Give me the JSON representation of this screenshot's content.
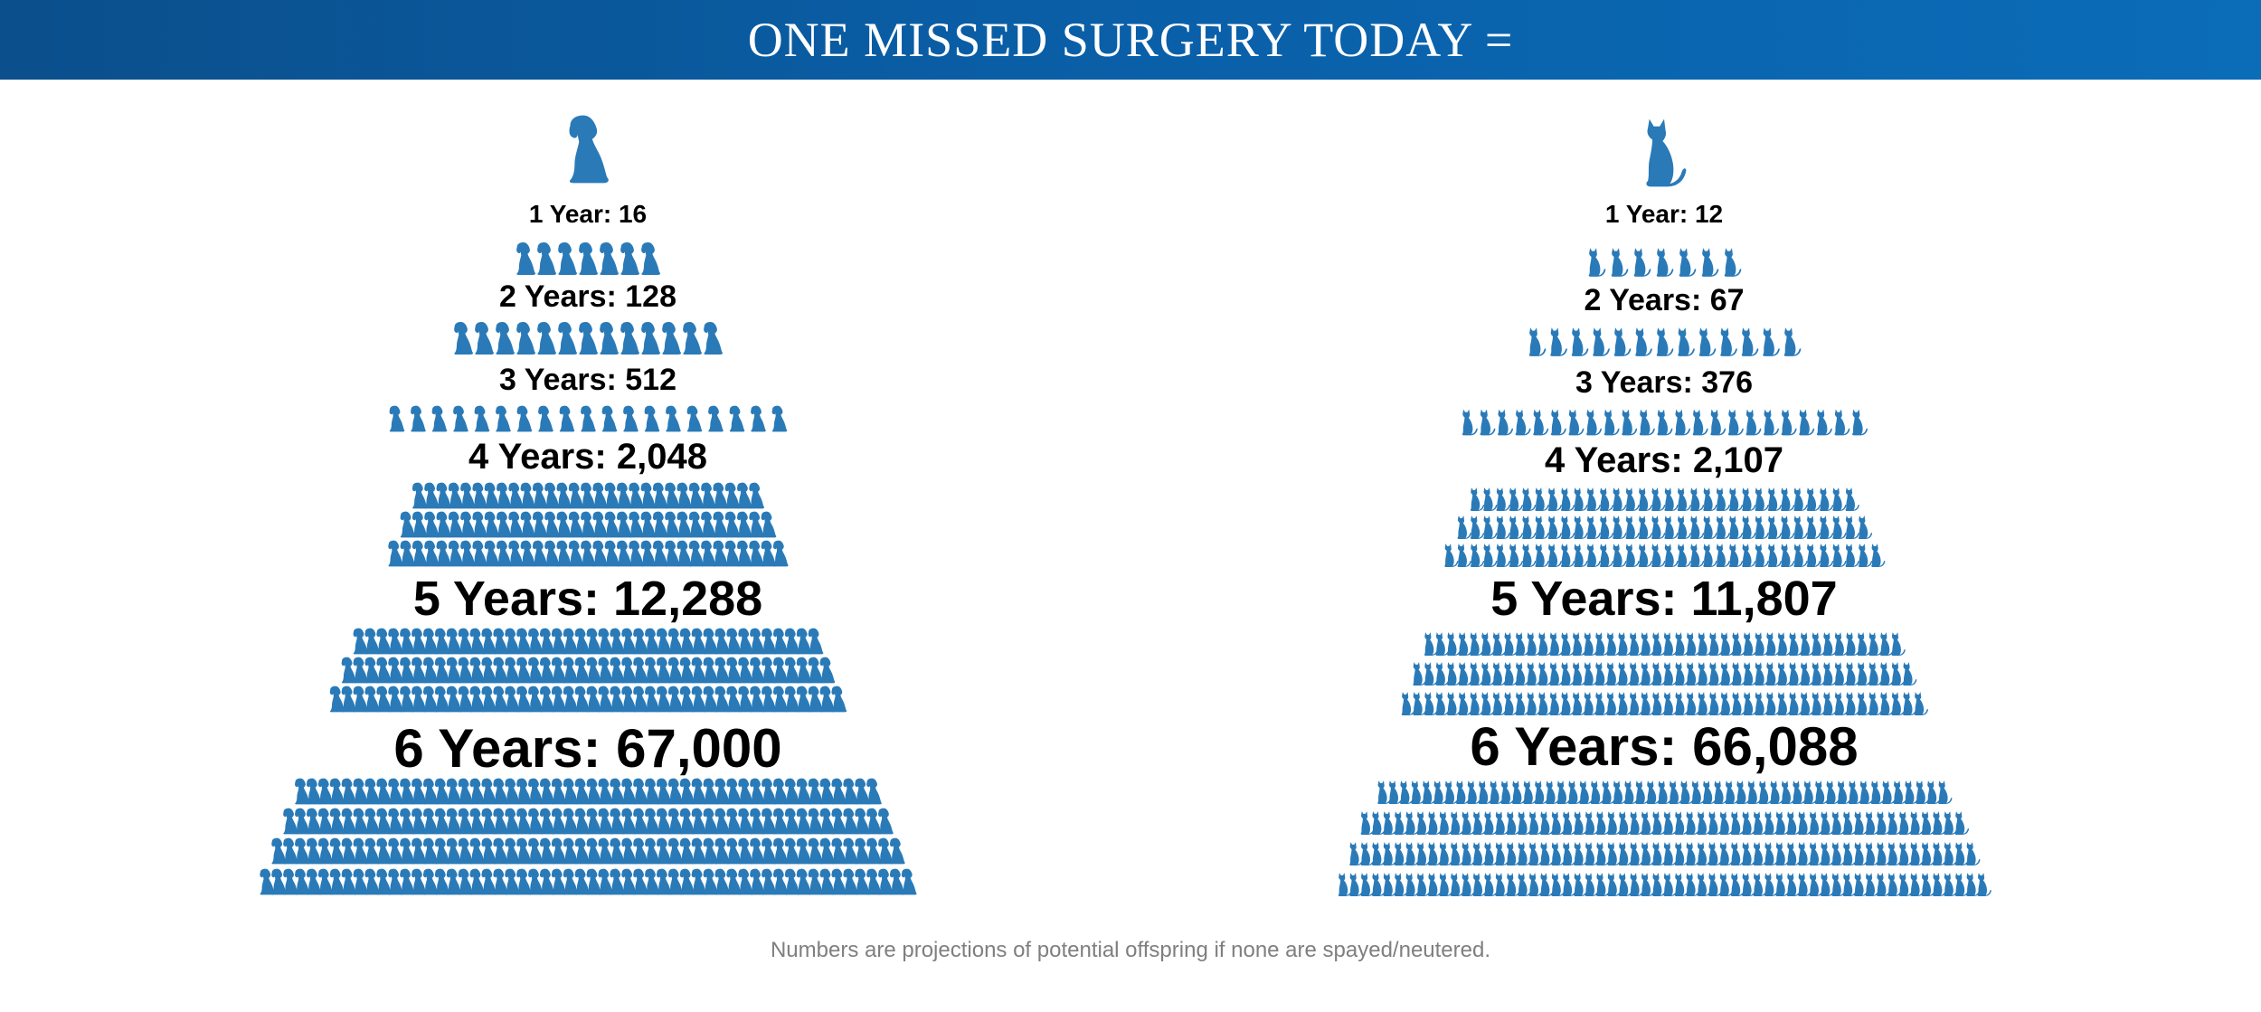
{
  "header": {
    "title": "ONE MISSED SURGERY TODAY ="
  },
  "colors": {
    "accent": "#2a7ab8",
    "header_bg": "#0a5ea6"
  },
  "dog": {
    "icon": "dog-icon",
    "levels": [
      {
        "label": "1 Year: 16"
      },
      {
        "label": "2 Years: 128"
      },
      {
        "label": "3 Years: 512"
      },
      {
        "label": "4 Years: 2,048"
      },
      {
        "label": "5 Years: 12,288"
      },
      {
        "label": "6 Years: 67,000"
      }
    ]
  },
  "cat": {
    "icon": "cat-icon",
    "levels": [
      {
        "label": "1 Year: 12"
      },
      {
        "label": "2 Years: 67"
      },
      {
        "label": "3 Years: 376"
      },
      {
        "label": "4 Years: 2,107"
      },
      {
        "label": "5 Years: 11,807"
      },
      {
        "label": "6 Years: 66,088"
      }
    ]
  },
  "footnote": "Numbers are projections of potential offspring if none are spayed/neutered."
}
